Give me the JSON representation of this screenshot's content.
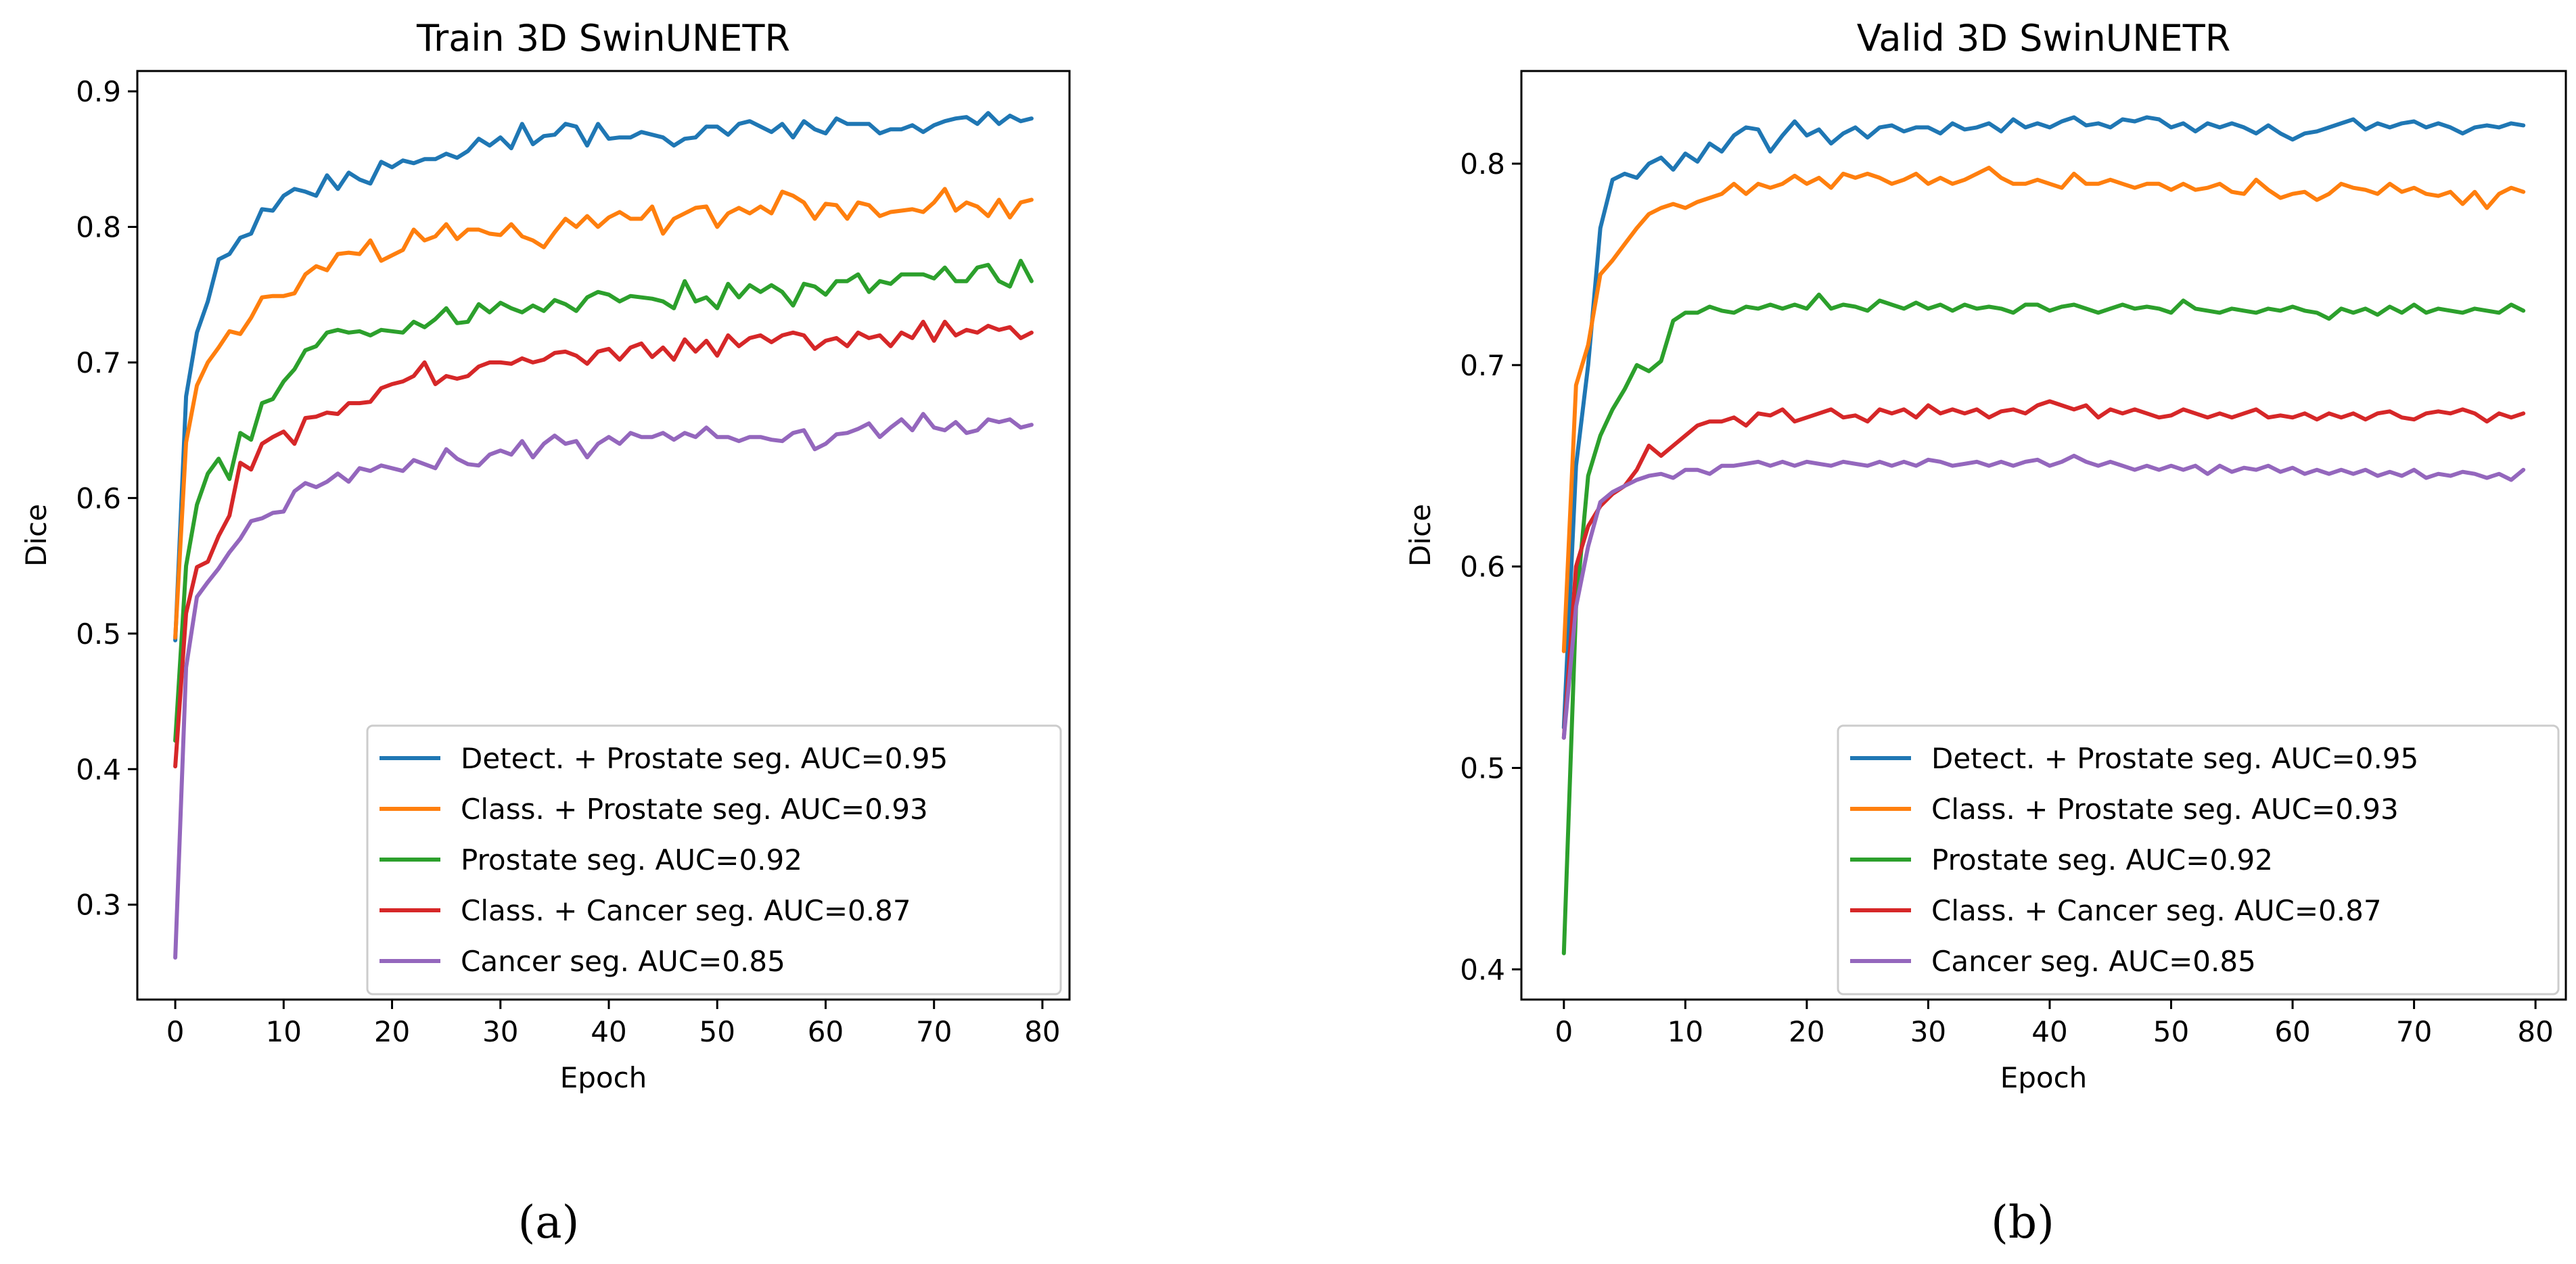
{
  "series_colors": [
    "#1f77b4",
    "#ff7f0e",
    "#2ca02c",
    "#d62728",
    "#9467bd"
  ],
  "chart_data": [
    {
      "type": "line",
      "title": "Train 3D SwinUNETR",
      "xlabel": "Epoch",
      "ylabel": "Dice",
      "caption": "(a)",
      "xlim": [
        -3.5,
        82.5
      ],
      "ylim": [
        0.23,
        0.915
      ],
      "xticks": [
        0,
        10,
        20,
        30,
        40,
        50,
        60,
        70,
        80
      ],
      "yticks": [
        0.3,
        0.4,
        0.5,
        0.6,
        0.7,
        0.8,
        0.9
      ],
      "grid": false,
      "legend_position": "lower-right",
      "x_start": 0,
      "x_step": 1,
      "series": [
        {
          "name": "Detect. + Prostate seg. AUC=0.95",
          "values": [
            0.495,
            0.675,
            0.722,
            0.745,
            0.776,
            0.78,
            0.792,
            0.795,
            0.813,
            0.812,
            0.823,
            0.828,
            0.826,
            0.823,
            0.838,
            0.828,
            0.84,
            0.835,
            0.832,
            0.848,
            0.844,
            0.849,
            0.847,
            0.85,
            0.85,
            0.854,
            0.851,
            0.856,
            0.865,
            0.86,
            0.866,
            0.858,
            0.876,
            0.861,
            0.867,
            0.868,
            0.876,
            0.874,
            0.86,
            0.876,
            0.865,
            0.866,
            0.866,
            0.87,
            0.868,
            0.866,
            0.86,
            0.865,
            0.866,
            0.874,
            0.874,
            0.868,
            0.876,
            0.878,
            0.874,
            0.87,
            0.876,
            0.866,
            0.878,
            0.872,
            0.869,
            0.88,
            0.876,
            0.876,
            0.876,
            0.869,
            0.872,
            0.872,
            0.875,
            0.87,
            0.875,
            0.878,
            0.88,
            0.881,
            0.876,
            0.884,
            0.876,
            0.882,
            0.878,
            0.88
          ]
        },
        {
          "name": "Class. + Prostate seg. AUC=0.93",
          "values": [
            0.497,
            0.641,
            0.683,
            0.7,
            0.711,
            0.723,
            0.721,
            0.733,
            0.748,
            0.749,
            0.749,
            0.751,
            0.765,
            0.771,
            0.768,
            0.78,
            0.781,
            0.78,
            0.79,
            0.775,
            0.779,
            0.783,
            0.798,
            0.79,
            0.793,
            0.802,
            0.791,
            0.798,
            0.798,
            0.795,
            0.794,
            0.802,
            0.793,
            0.79,
            0.785,
            0.796,
            0.806,
            0.8,
            0.808,
            0.8,
            0.807,
            0.811,
            0.806,
            0.806,
            0.815,
            0.795,
            0.806,
            0.81,
            0.814,
            0.815,
            0.8,
            0.81,
            0.814,
            0.81,
            0.815,
            0.81,
            0.826,
            0.823,
            0.818,
            0.806,
            0.817,
            0.816,
            0.806,
            0.818,
            0.816,
            0.808,
            0.811,
            0.812,
            0.813,
            0.811,
            0.818,
            0.828,
            0.812,
            0.818,
            0.815,
            0.808,
            0.82,
            0.807,
            0.818,
            0.82
          ]
        },
        {
          "name": "Prostate seg. AUC=0.92",
          "values": [
            0.421,
            0.55,
            0.595,
            0.618,
            0.629,
            0.614,
            0.648,
            0.643,
            0.67,
            0.673,
            0.686,
            0.695,
            0.709,
            0.712,
            0.722,
            0.724,
            0.722,
            0.723,
            0.72,
            0.724,
            0.723,
            0.722,
            0.73,
            0.726,
            0.732,
            0.74,
            0.729,
            0.73,
            0.743,
            0.737,
            0.744,
            0.74,
            0.737,
            0.742,
            0.738,
            0.746,
            0.743,
            0.738,
            0.748,
            0.752,
            0.75,
            0.745,
            0.749,
            0.748,
            0.747,
            0.745,
            0.74,
            0.76,
            0.745,
            0.748,
            0.74,
            0.758,
            0.748,
            0.757,
            0.752,
            0.757,
            0.752,
            0.742,
            0.758,
            0.756,
            0.75,
            0.76,
            0.76,
            0.765,
            0.752,
            0.76,
            0.758,
            0.765,
            0.765,
            0.765,
            0.762,
            0.77,
            0.76,
            0.76,
            0.77,
            0.772,
            0.76,
            0.756,
            0.775,
            0.76
          ]
        },
        {
          "name": "Class. + Cancer seg. AUC=0.87",
          "values": [
            0.402,
            0.515,
            0.549,
            0.553,
            0.572,
            0.587,
            0.626,
            0.621,
            0.64,
            0.645,
            0.649,
            0.64,
            0.659,
            0.66,
            0.663,
            0.662,
            0.67,
            0.67,
            0.671,
            0.681,
            0.684,
            0.686,
            0.69,
            0.7,
            0.684,
            0.69,
            0.688,
            0.69,
            0.697,
            0.7,
            0.7,
            0.699,
            0.703,
            0.7,
            0.702,
            0.707,
            0.708,
            0.705,
            0.699,
            0.708,
            0.71,
            0.702,
            0.711,
            0.714,
            0.704,
            0.711,
            0.702,
            0.717,
            0.708,
            0.716,
            0.705,
            0.72,
            0.712,
            0.718,
            0.72,
            0.715,
            0.72,
            0.722,
            0.72,
            0.71,
            0.716,
            0.718,
            0.712,
            0.722,
            0.718,
            0.72,
            0.712,
            0.722,
            0.718,
            0.73,
            0.716,
            0.73,
            0.72,
            0.724,
            0.722,
            0.727,
            0.724,
            0.726,
            0.718,
            0.722
          ]
        },
        {
          "name": "Cancer seg. AUC=0.85",
          "values": [
            0.261,
            0.475,
            0.527,
            0.538,
            0.548,
            0.56,
            0.57,
            0.583,
            0.585,
            0.589,
            0.59,
            0.605,
            0.611,
            0.608,
            0.612,
            0.618,
            0.612,
            0.622,
            0.62,
            0.624,
            0.622,
            0.62,
            0.628,
            0.625,
            0.622,
            0.636,
            0.629,
            0.625,
            0.624,
            0.632,
            0.635,
            0.632,
            0.642,
            0.63,
            0.64,
            0.646,
            0.64,
            0.642,
            0.63,
            0.64,
            0.645,
            0.64,
            0.648,
            0.645,
            0.645,
            0.648,
            0.643,
            0.648,
            0.645,
            0.652,
            0.645,
            0.645,
            0.642,
            0.645,
            0.645,
            0.643,
            0.642,
            0.648,
            0.65,
            0.636,
            0.64,
            0.647,
            0.648,
            0.651,
            0.655,
            0.645,
            0.652,
            0.658,
            0.65,
            0.662,
            0.652,
            0.65,
            0.656,
            0.648,
            0.65,
            0.658,
            0.656,
            0.658,
            0.652,
            0.654
          ]
        }
      ]
    },
    {
      "type": "line",
      "title": "Valid 3D SwinUNETR",
      "xlabel": "Epoch",
      "ylabel": "Dice",
      "caption": "(b)",
      "xlim": [
        -3.5,
        82.5
      ],
      "ylim": [
        0.385,
        0.846
      ],
      "xticks": [
        0,
        10,
        20,
        30,
        40,
        50,
        60,
        70,
        80
      ],
      "yticks": [
        0.4,
        0.5,
        0.6,
        0.7,
        0.8
      ],
      "grid": false,
      "legend_position": "lower-right",
      "x_start": 0,
      "x_step": 1,
      "series": [
        {
          "name": "Detect. + Prostate seg. AUC=0.95",
          "values": [
            0.52,
            0.65,
            0.7,
            0.768,
            0.792,
            0.795,
            0.793,
            0.8,
            0.803,
            0.797,
            0.805,
            0.801,
            0.81,
            0.806,
            0.814,
            0.818,
            0.817,
            0.806,
            0.814,
            0.821,
            0.814,
            0.817,
            0.81,
            0.815,
            0.818,
            0.813,
            0.818,
            0.819,
            0.816,
            0.818,
            0.818,
            0.815,
            0.82,
            0.817,
            0.818,
            0.82,
            0.816,
            0.822,
            0.818,
            0.82,
            0.818,
            0.821,
            0.823,
            0.819,
            0.82,
            0.818,
            0.822,
            0.821,
            0.823,
            0.822,
            0.818,
            0.82,
            0.816,
            0.82,
            0.818,
            0.82,
            0.818,
            0.815,
            0.819,
            0.815,
            0.812,
            0.815,
            0.816,
            0.818,
            0.82,
            0.822,
            0.817,
            0.82,
            0.818,
            0.82,
            0.821,
            0.818,
            0.82,
            0.818,
            0.815,
            0.818,
            0.819,
            0.818,
            0.82,
            0.819
          ]
        },
        {
          "name": "Class. + Prostate seg. AUC=0.93",
          "values": [
            0.558,
            0.69,
            0.71,
            0.745,
            0.752,
            0.76,
            0.768,
            0.775,
            0.778,
            0.78,
            0.778,
            0.781,
            0.783,
            0.785,
            0.79,
            0.785,
            0.79,
            0.788,
            0.79,
            0.794,
            0.79,
            0.793,
            0.788,
            0.795,
            0.793,
            0.795,
            0.793,
            0.79,
            0.792,
            0.795,
            0.79,
            0.793,
            0.79,
            0.792,
            0.795,
            0.798,
            0.793,
            0.79,
            0.79,
            0.792,
            0.79,
            0.788,
            0.795,
            0.79,
            0.79,
            0.792,
            0.79,
            0.788,
            0.79,
            0.79,
            0.787,
            0.79,
            0.787,
            0.788,
            0.79,
            0.786,
            0.785,
            0.792,
            0.787,
            0.783,
            0.785,
            0.786,
            0.782,
            0.785,
            0.79,
            0.788,
            0.787,
            0.785,
            0.79,
            0.786,
            0.788,
            0.785,
            0.784,
            0.786,
            0.78,
            0.786,
            0.778,
            0.785,
            0.788,
            0.786
          ]
        },
        {
          "name": "Prostate seg. AUC=0.92",
          "values": [
            0.408,
            0.58,
            0.645,
            0.665,
            0.678,
            0.688,
            0.7,
            0.697,
            0.702,
            0.722,
            0.726,
            0.726,
            0.729,
            0.727,
            0.726,
            0.729,
            0.728,
            0.73,
            0.728,
            0.73,
            0.728,
            0.735,
            0.728,
            0.73,
            0.729,
            0.727,
            0.732,
            0.73,
            0.728,
            0.731,
            0.728,
            0.73,
            0.727,
            0.73,
            0.728,
            0.729,
            0.728,
            0.726,
            0.73,
            0.73,
            0.727,
            0.729,
            0.73,
            0.728,
            0.726,
            0.728,
            0.73,
            0.728,
            0.729,
            0.728,
            0.726,
            0.732,
            0.728,
            0.727,
            0.726,
            0.728,
            0.727,
            0.726,
            0.728,
            0.727,
            0.729,
            0.727,
            0.726,
            0.723,
            0.728,
            0.726,
            0.728,
            0.725,
            0.729,
            0.726,
            0.73,
            0.726,
            0.728,
            0.727,
            0.726,
            0.728,
            0.727,
            0.726,
            0.73,
            0.727
          ]
        },
        {
          "name": "Class. + Cancer seg. AUC=0.87",
          "values": [
            0.515,
            0.6,
            0.62,
            0.63,
            0.636,
            0.64,
            0.648,
            0.66,
            0.655,
            0.66,
            0.665,
            0.67,
            0.672,
            0.672,
            0.674,
            0.67,
            0.676,
            0.675,
            0.678,
            0.672,
            0.674,
            0.676,
            0.678,
            0.674,
            0.675,
            0.672,
            0.678,
            0.676,
            0.678,
            0.674,
            0.68,
            0.676,
            0.678,
            0.676,
            0.678,
            0.674,
            0.677,
            0.678,
            0.676,
            0.68,
            0.682,
            0.68,
            0.678,
            0.68,
            0.674,
            0.678,
            0.676,
            0.678,
            0.676,
            0.674,
            0.675,
            0.678,
            0.676,
            0.674,
            0.676,
            0.674,
            0.676,
            0.678,
            0.674,
            0.675,
            0.674,
            0.676,
            0.673,
            0.676,
            0.674,
            0.676,
            0.673,
            0.676,
            0.677,
            0.674,
            0.673,
            0.676,
            0.677,
            0.676,
            0.678,
            0.676,
            0.672,
            0.676,
            0.674,
            0.676
          ]
        },
        {
          "name": "Cancer seg. AUC=0.85",
          "values": [
            0.515,
            0.58,
            0.61,
            0.632,
            0.637,
            0.64,
            0.643,
            0.645,
            0.646,
            0.644,
            0.648,
            0.648,
            0.646,
            0.65,
            0.65,
            0.651,
            0.652,
            0.65,
            0.652,
            0.65,
            0.652,
            0.651,
            0.65,
            0.652,
            0.651,
            0.65,
            0.652,
            0.65,
            0.652,
            0.65,
            0.653,
            0.652,
            0.65,
            0.651,
            0.652,
            0.65,
            0.652,
            0.65,
            0.652,
            0.653,
            0.65,
            0.652,
            0.655,
            0.652,
            0.65,
            0.652,
            0.65,
            0.648,
            0.65,
            0.648,
            0.65,
            0.648,
            0.65,
            0.646,
            0.65,
            0.647,
            0.649,
            0.648,
            0.65,
            0.647,
            0.649,
            0.646,
            0.648,
            0.646,
            0.648,
            0.646,
            0.648,
            0.645,
            0.647,
            0.645,
            0.648,
            0.644,
            0.646,
            0.645,
            0.647,
            0.646,
            0.644,
            0.646,
            0.643,
            0.648
          ]
        }
      ]
    }
  ]
}
